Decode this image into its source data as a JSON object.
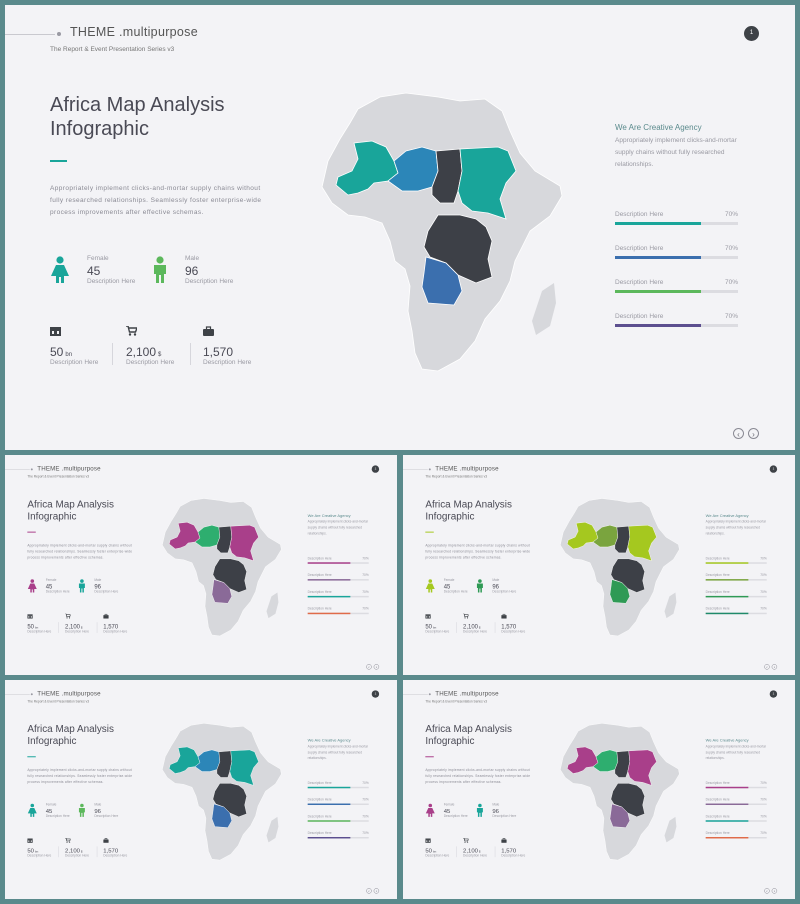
{
  "common": {
    "theme": "THEME .multipurpose",
    "subtitle": "The Report & Event Presentation Series v3",
    "page_number": "1",
    "title_line1": "Africa Map Analysis",
    "title_line2": "Infographic",
    "paragraph": "Appropriately implement clicks-and-mortar supply chains without fully researched relationships. Seamlessly foster enterprise-wide process improvements after effective schemas.",
    "female_label": "Female",
    "female_value": "45",
    "male_label": "Male",
    "male_value": "96",
    "description": "Description Here",
    "bottom_stats": [
      {
        "value": "50",
        "unit": "bn",
        "icon": "film-icon"
      },
      {
        "value": "2,100",
        "unit": "$",
        "icon": "cart-icon"
      },
      {
        "value": "1,570",
        "unit": "",
        "icon": "bag-icon"
      }
    ],
    "agency_title": "We Are Creative Agency",
    "agency_text": "Appropriately implement clicks-and-mortar supply chains without fully researched relationships.",
    "bars": [
      {
        "label": "Description Here",
        "percent": "70%",
        "value": 0.7
      },
      {
        "label": "Description Here",
        "percent": "70%",
        "value": 0.7
      },
      {
        "label": "Description Here",
        "percent": "70%",
        "value": 0.7
      },
      {
        "label": "Description Here",
        "percent": "70%",
        "value": 0.7
      }
    ]
  },
  "variants": [
    {
      "name": "teal-blue",
      "accent": "#19a59a",
      "west": "#19a59a",
      "mali": "#2c86b8",
      "niger": "#3d4047",
      "sudan": "#19a59a",
      "congo": "#3d4047",
      "angola": "#3b6fae",
      "female": "#19a59a",
      "male": "#5cb85c",
      "bars": [
        "#19a59a",
        "#3b6fae",
        "#5cb85c",
        "#5c4f8f"
      ]
    },
    {
      "name": "magenta-green",
      "accent": "#a93f8a",
      "west": "#a93f8a",
      "mali": "#2eae6f",
      "niger": "#3d4047",
      "sudan": "#a93f8a",
      "congo": "#3d4047",
      "angola": "#8a6a98",
      "female": "#a93f8a",
      "male": "#19a59a",
      "bars": [
        "#a93f8a",
        "#8a6a98",
        "#19a59a",
        "#e06b4a"
      ]
    },
    {
      "name": "lime-green",
      "accent": "#a5c81f",
      "west": "#a5c81f",
      "mali": "#7aa43e",
      "niger": "#3d4047",
      "sudan": "#a5c81f",
      "congo": "#3d4047",
      "angola": "#2f9a55",
      "female": "#a5c81f",
      "male": "#2f9a55",
      "bars": [
        "#a5c81f",
        "#7aa43e",
        "#2f9a55",
        "#1f8a6a"
      ]
    },
    {
      "name": "teal-blue-2",
      "accent": "#19a59a",
      "west": "#19a59a",
      "mali": "#2c86b8",
      "niger": "#3d4047",
      "sudan": "#19a59a",
      "congo": "#3d4047",
      "angola": "#3b6fae",
      "female": "#19a59a",
      "male": "#5cb85c",
      "bars": [
        "#19a59a",
        "#3b6fae",
        "#5cb85c",
        "#5c4f8f"
      ]
    },
    {
      "name": "magenta-green-2",
      "accent": "#a93f8a",
      "west": "#a93f8a",
      "mali": "#2eae6f",
      "niger": "#3d4047",
      "sudan": "#a93f8a",
      "congo": "#3d4047",
      "angola": "#8a6a98",
      "female": "#a93f8a",
      "male": "#19a59a",
      "bars": [
        "#a93f8a",
        "#8a6a98",
        "#19a59a",
        "#e06b4a"
      ]
    }
  ]
}
